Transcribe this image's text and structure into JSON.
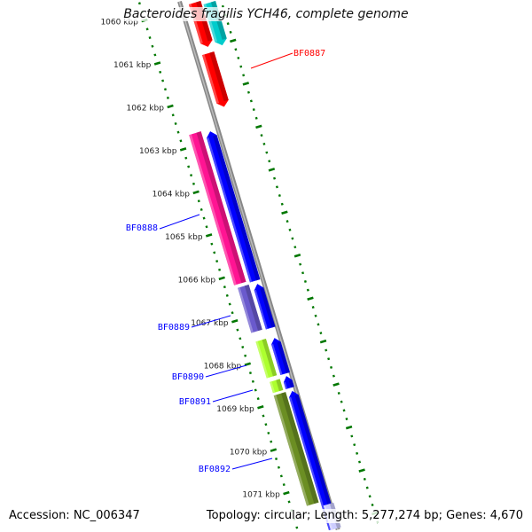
{
  "title": "Bacteroides fragilis YCH46, complete genome",
  "footer": {
    "accession": "Accession: NC_006347",
    "summary": "Topology: circular; Length: 5,277,274 bp; Genes: 4,670"
  },
  "scale": {
    "tick_labels": [
      "1060 kbp",
      "1061 kbp",
      "1062 kbp",
      "1063 kbp",
      "1064 kbp",
      "1065 kbp",
      "1066 kbp",
      "1067 kbp",
      "1068 kbp",
      "1069 kbp",
      "1070 kbp",
      "1071 kbp"
    ],
    "tick_color": "#007700",
    "axis_color": "#888888"
  },
  "genes": [
    {
      "color": "#ff0000",
      "strand": "+"
    },
    {
      "color": "#00cccc",
      "strand": "+"
    },
    {
      "color": "#ff0000",
      "strand": "+",
      "label": "BF0887",
      "label_color": "#ff0000"
    },
    {
      "color": "#ff1493",
      "strand": "none",
      "label": "BF0888",
      "label_color": "#0000ff"
    },
    {
      "color": "#0000ff",
      "strand": "-"
    },
    {
      "color": "#6a5acd",
      "strand": "none",
      "label": "BF0889",
      "label_color": "#0000ff"
    },
    {
      "color": "#0000ff",
      "strand": "-"
    },
    {
      "color": "#adff2f",
      "strand": "none",
      "label": "BF0890",
      "label_color": "#0000ff"
    },
    {
      "color": "#0000ff",
      "strand": "-"
    },
    {
      "color": "#adff2f",
      "strand": "none",
      "label": "BF0891",
      "label_color": "#0000ff"
    },
    {
      "color": "#0000ff",
      "strand": "-"
    },
    {
      "color": "#6b8e23",
      "strand": "none",
      "label": "BF0892",
      "label_color": "#0000ff"
    },
    {
      "color": "#0000ff",
      "strand": "-"
    },
    {
      "color": "#ccccff",
      "strand": "none"
    }
  ]
}
